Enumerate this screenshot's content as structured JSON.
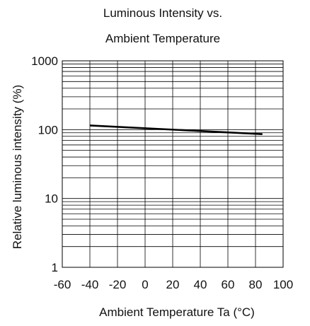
{
  "chart_data": {
    "type": "line",
    "title_lines": [
      "Luminous Intensity vs.",
      "Ambient Temperature"
    ],
    "xlabel": "Ambient Temperature Ta (°C)",
    "ylabel": "Relative luminous intensity  (%)",
    "xlim": [
      -60,
      100
    ],
    "ylim": [
      1,
      1000
    ],
    "y_scale": "log",
    "grid": true,
    "x_ticks": [
      -60,
      -40,
      -20,
      0,
      20,
      40,
      60,
      80,
      100
    ],
    "x_tick_labels": [
      "-60",
      "-40",
      "-20",
      "0",
      "20",
      "40",
      "60",
      "80",
      "100"
    ],
    "y_ticks": [
      1,
      10,
      100,
      1000
    ],
    "y_tick_labels": [
      "1",
      "10",
      "100",
      "1000"
    ],
    "series": [
      {
        "x": [
          -40,
          85
        ],
        "y": [
          115,
          86
        ]
      }
    ]
  }
}
